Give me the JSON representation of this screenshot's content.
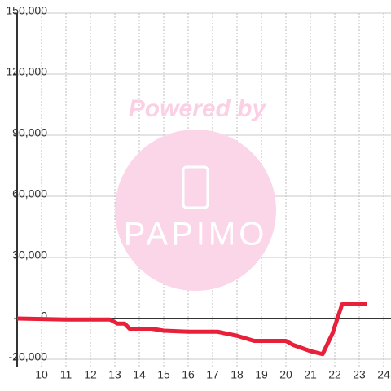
{
  "chart_data": {
    "type": "line",
    "x": [
      9,
      11,
      12.8,
      13.1,
      13.4,
      13.6,
      14.5,
      15,
      16,
      17.2,
      18,
      18.7,
      20,
      20.3,
      21,
      21.5,
      21.9,
      22.3,
      23.3
    ],
    "series": [
      {
        "color": "#e8203a",
        "values": [
          0,
          -500,
          -500,
          -2500,
          -2500,
          -5000,
          -5000,
          -6000,
          -6500,
          -6500,
          -8500,
          -11000,
          -11000,
          -13000,
          -16000,
          -17500,
          -7500,
          7000,
          7000
        ]
      }
    ],
    "xlim": [
      9,
      24.3
    ],
    "xticks": [
      10,
      11,
      12,
      13,
      14,
      15,
      16,
      17,
      18,
      19,
      20,
      21,
      22,
      23,
      24
    ],
    "ylim": [
      -20000,
      150000
    ],
    "yticks": [
      {
        "value": -20000,
        "label": "-20,000"
      },
      0,
      {
        "value": 30000,
        "label": "30,000"
      },
      {
        "value": 60000,
        "label": "60,000"
      },
      {
        "value": 90000,
        "label": "90,000"
      },
      {
        "value": 120000,
        "label": "120,000"
      },
      {
        "value": 150000,
        "label": "150,000"
      }
    ],
    "grid": true,
    "watermark": {
      "text": "Powered by",
      "logo": "PAPIMO"
    }
  }
}
